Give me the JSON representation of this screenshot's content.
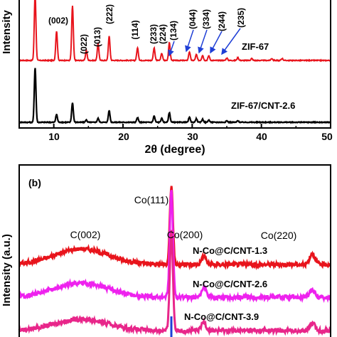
{
  "colors": {
    "zif67": "#e8141c",
    "composite": "#000000",
    "arrow": "#1f3fd6",
    "cnt13": "#e8141c",
    "cnt26": "#ee22ee",
    "cnt39": "#e8268a",
    "cnt39_peak": "#1f3fd6"
  },
  "chart_data": [
    {
      "type": "line",
      "panel": "a",
      "xlabel": "2θ (degree)",
      "ylabel": "Intensity",
      "xlim": [
        5,
        50
      ],
      "x_ticks": [
        "10",
        "20",
        "30",
        "40",
        "50"
      ],
      "grid": false,
      "series": [
        {
          "name": "ZIF-67",
          "peaks": [
            {
              "x": 7.3,
              "h": 1.7
            },
            {
              "x": 10.4,
              "h": 0.75
            },
            {
              "x": 12.7,
              "h": 1.4
            },
            {
              "x": 14.7,
              "h": 0.25
            },
            {
              "x": 16.4,
              "h": 0.42
            },
            {
              "x": 18.0,
              "h": 0.62
            },
            {
              "x": 22.1,
              "h": 0.32
            },
            {
              "x": 24.5,
              "h": 0.32
            },
            {
              "x": 25.6,
              "h": 0.18
            },
            {
              "x": 26.7,
              "h": 0.45
            },
            {
              "x": 29.6,
              "h": 0.22
            },
            {
              "x": 30.6,
              "h": 0.15
            },
            {
              "x": 31.5,
              "h": 0.13
            },
            {
              "x": 32.4,
              "h": 0.12
            },
            {
              "x": 35.0,
              "h": 0.06
            },
            {
              "x": 36.6,
              "h": 0.07
            },
            {
              "x": 38.6,
              "h": 0.05
            },
            {
              "x": 41.5,
              "h": 0.05
            },
            {
              "x": 43.0,
              "h": 0.05
            }
          ]
        },
        {
          "name": "ZIF-67/CNT-2.6",
          "peaks": [
            {
              "x": 7.3,
              "h": 1.4
            },
            {
              "x": 10.4,
              "h": 0.2
            },
            {
              "x": 12.7,
              "h": 0.5
            },
            {
              "x": 14.7,
              "h": 0.06
            },
            {
              "x": 16.4,
              "h": 0.1
            },
            {
              "x": 18.0,
              "h": 0.3
            },
            {
              "x": 22.1,
              "h": 0.12
            },
            {
              "x": 24.5,
              "h": 0.16
            },
            {
              "x": 25.6,
              "h": 0.1
            },
            {
              "x": 26.7,
              "h": 0.25
            },
            {
              "x": 29.6,
              "h": 0.13
            },
            {
              "x": 30.6,
              "h": 0.09
            },
            {
              "x": 31.5,
              "h": 0.08
            },
            {
              "x": 32.4,
              "h": 0.06
            },
            {
              "x": 35.0,
              "h": 0.04
            },
            {
              "x": 36.6,
              "h": 0.04
            }
          ]
        }
      ],
      "annotations": [
        {
          "text": "(002)",
          "x": 10.4
        },
        {
          "text": "(022)",
          "x": 14.7
        },
        {
          "text": "(013)",
          "x": 16.4
        },
        {
          "text": "(222)",
          "x": 18.0
        },
        {
          "text": "(114)",
          "x": 22.1
        },
        {
          "text": "(233)",
          "x": 24.5
        },
        {
          "text": "(224)",
          "x": 25.6
        },
        {
          "text": "(134)",
          "x": 26.7
        },
        {
          "text": "(044)",
          "x": 29.6
        },
        {
          "text": "(334)",
          "x": 30.6
        },
        {
          "text": "(244)",
          "x": 31.5
        },
        {
          "text": "(235)",
          "x": 32.4
        }
      ],
      "series_labels": [
        "ZIF-67",
        "ZIF-67/CNT-2.6"
      ]
    },
    {
      "type": "line",
      "panel": "b",
      "panel_label": "(b)",
      "ylabel": "Intensity (a.u.)",
      "grid": false,
      "series": [
        {
          "name": "N-Co@C/CNT-1.3",
          "broad_x": 14,
          "peaks": [
            {
              "x": 44.2,
              "label": "Co(111)"
            },
            {
              "x": 51.5,
              "label": "Co(200)"
            },
            {
              "x": 75.9,
              "label": "Co(220)"
            }
          ]
        },
        {
          "name": "N-Co@C/CNT-2.6",
          "broad_x": 14,
          "peaks": [
            {
              "x": 44.2
            },
            {
              "x": 51.5
            },
            {
              "x": 75.9
            }
          ]
        },
        {
          "name": "N-Co@C/CNT-3.9",
          "broad_x": 14,
          "peaks": [
            {
              "x": 44.2
            },
            {
              "x": 51.5
            },
            {
              "x": 75.9
            }
          ]
        }
      ],
      "annotations": [
        "C(002)",
        "Co(111)",
        "Co(200)",
        "Co(220)"
      ]
    }
  ],
  "text": {
    "a_ylabel": "Intensity",
    "a_xlabel": "2θ (degree)",
    "a_ticks": [
      "10",
      "20",
      "30",
      "40",
      "50"
    ],
    "a_peak_labels": [
      "(002)",
      "(022)",
      "(013)",
      "(222)",
      "(114)",
      "(233)",
      "(224)",
      "(134)",
      "(044)",
      "(334)",
      "(244)",
      "(235)"
    ],
    "a_series1": "ZIF-67",
    "a_series2": "ZIF-67/CNT-2.6",
    "b_panel": "(b)",
    "b_ylabel": "Intensity (a.u.)",
    "b_c002": "C(002)",
    "b_co111": "Co(111)",
    "b_co200": "Co(200)",
    "b_co220": "Co(220)",
    "b_series1": "N-Co@C/CNT-1.3",
    "b_series2": "N-Co@C/CNT-2.6",
    "b_series3": "N-Co@C/CNT-3.9"
  }
}
